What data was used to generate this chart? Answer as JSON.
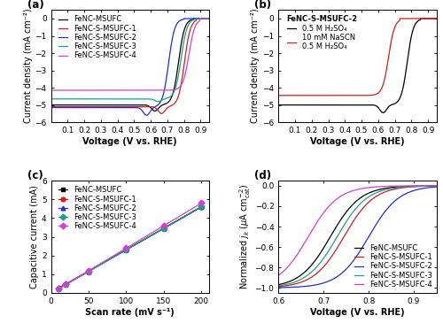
{
  "panel_a": {
    "xlabel": "Voltage (V vs. RHE)",
    "ylabel": "Current density (mA cm⁻²)",
    "xlim": [
      0.0,
      0.95
    ],
    "ylim": [
      -6,
      0.5
    ],
    "yticks": [
      0,
      -1,
      -2,
      -3,
      -4,
      -5,
      -6
    ],
    "xticks": [
      0.1,
      0.2,
      0.3,
      0.4,
      0.5,
      0.6,
      0.7,
      0.8,
      0.9
    ],
    "lines": [
      {
        "label": "FeNC-MSUFC",
        "color": "#000000",
        "onset": 0.855,
        "half_wave": 0.68,
        "limiting": -5.0,
        "dip_x": 0.625,
        "dip_y": -5.35,
        "steep": 55
      },
      {
        "label": "FeNC-S-MSUFC-1",
        "color": "#cc2020",
        "onset": 0.875,
        "half_wave": 0.73,
        "limiting": -5.1,
        "dip_x": 0.665,
        "dip_y": -5.5,
        "steep": 55
      },
      {
        "label": "FeNC-S-MSUFC-2",
        "color": "#2030cc",
        "onset": 0.8,
        "half_wave": 0.615,
        "limiting": -5.15,
        "dip_x": 0.575,
        "dip_y": -5.6,
        "steep": 55
      },
      {
        "label": "FeNC-S-MSUFC-3",
        "color": "#20a080",
        "onset": 0.865,
        "half_wave": 0.7,
        "limiting": -4.65,
        "dip_x": 0.645,
        "dip_y": -4.8,
        "steep": 55
      },
      {
        "label": "FeNC-S-MSUFC-4",
        "color": "#cc44cc",
        "onset": 0.895,
        "half_wave": 0.765,
        "limiting": -4.15,
        "dip_x": null,
        "dip_y": null,
        "steep": 55
      }
    ]
  },
  "panel_b": {
    "xlabel": "Voltage (V vs. RHE)",
    "ylabel": "Current density (mA cm⁻²)",
    "xlim": [
      0.0,
      0.95
    ],
    "ylim": [
      -6,
      0.5
    ],
    "yticks": [
      0,
      -1,
      -2,
      -3,
      -4,
      -5,
      -6
    ],
    "xticks": [
      0.1,
      0.2,
      0.3,
      0.4,
      0.5,
      0.6,
      0.7,
      0.8,
      0.9
    ],
    "legend_title": "FeNC-S-MSUFC-2",
    "lines": [
      {
        "label": "0.5 M H₂SO₄",
        "color": "#000000",
        "onset": 0.855,
        "half_wave": 0.695,
        "limiting": -5.0,
        "dip_x": 0.63,
        "dip_y": -5.45,
        "steep": 55
      },
      {
        "label": "10 mM NaSCN\n0.5 M H₂SO₄",
        "color": "#cc2020",
        "onset": 0.73,
        "half_wave": 0.595,
        "limiting": -4.45,
        "dip_x": null,
        "dip_y": null,
        "steep": 55
      }
    ]
  },
  "panel_c": {
    "xlabel": "Scan rate (mV s⁻¹)",
    "ylabel": "Capacitive current (mA)",
    "xlim": [
      0,
      210
    ],
    "ylim": [
      0,
      6
    ],
    "xticks": [
      0,
      50,
      100,
      150,
      200
    ],
    "yticks": [
      0,
      1,
      2,
      3,
      4,
      5,
      6
    ],
    "lines": [
      {
        "label": "FeNC-MSUFC",
        "color": "#000000",
        "slope": 0.02285,
        "intercept": 0.02,
        "marker": "s"
      },
      {
        "label": "FeNC-S-MSUFC-1",
        "color": "#cc2020",
        "slope": 0.02295,
        "intercept": 0.01,
        "marker": "o"
      },
      {
        "label": "FeNC-S-MSUFC-2",
        "color": "#2030cc",
        "slope": 0.02305,
        "intercept": 0.0,
        "marker": "^"
      },
      {
        "label": "FeNC-S-MSUFC-3",
        "color": "#20a080",
        "slope": 0.0231,
        "intercept": -0.01,
        "marker": "D"
      },
      {
        "label": "FeNC-S-MSUFC-4",
        "color": "#cc44cc",
        "slope": 0.0241,
        "intercept": -0.02,
        "marker": "D"
      }
    ],
    "scan_rates": [
      10,
      20,
      50,
      100,
      150,
      200
    ]
  },
  "panel_d": {
    "xlabel": "Voltage (V vs. RHE)",
    "ylabel": "Normalized j_k (μA cm⁻²_cat)",
    "xlim": [
      0.6,
      0.95
    ],
    "ylim": [
      -1.05,
      0.05
    ],
    "xticks": [
      0.6,
      0.7,
      0.8,
      0.9
    ],
    "yticks": [
      0.0,
      -0.2,
      -0.4,
      -0.6,
      -0.8,
      -1.0
    ],
    "lines": [
      {
        "label": "FeNC-MSUFC",
        "color": "#000000",
        "half_wave": 0.715,
        "steep": 30
      },
      {
        "label": "FeNC-S-MSUFC-1",
        "color": "#cc2020",
        "half_wave": 0.745,
        "steep": 30
      },
      {
        "label": "FeNC-S-MSUFC-2",
        "color": "#2030cc",
        "half_wave": 0.8,
        "steep": 30
      },
      {
        "label": "FeNC-S-MSUFC-3",
        "color": "#20a080",
        "half_wave": 0.73,
        "steep": 30
      },
      {
        "label": "FeNC-S-MSUFC-4",
        "color": "#cc44cc",
        "half_wave": 0.666,
        "steep": 30
      }
    ]
  },
  "bg_color": "#ffffff",
  "font_size": 7,
  "label_font_size": 7,
  "legend_font_size": 6,
  "tick_font_size": 6.5
}
